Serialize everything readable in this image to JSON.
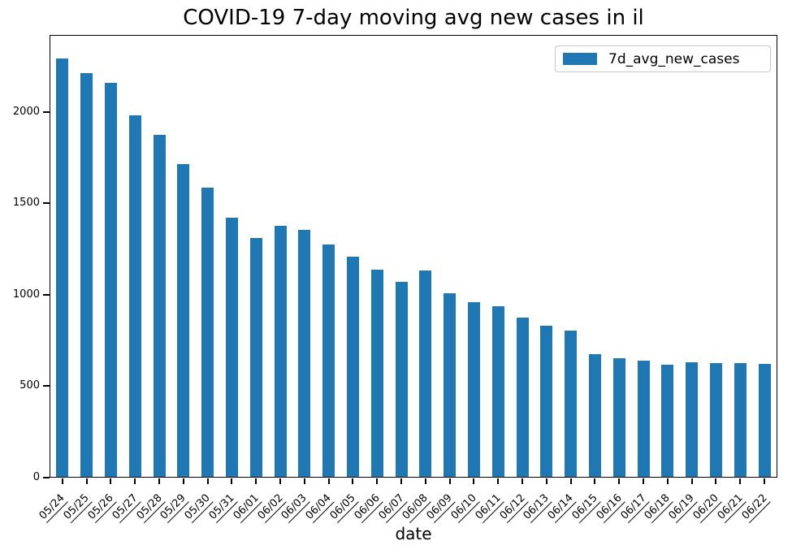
{
  "chart_data": {
    "type": "bar",
    "title": "COVID-19 7-day moving avg new cases in il",
    "xlabel": "date",
    "ylabel": "",
    "legend": {
      "label": "7d_avg_new_cases",
      "position": "upper right"
    },
    "bar_color": "#1f77b4",
    "grid": false,
    "ylim": [
      0,
      2420
    ],
    "yticks": [
      0,
      500,
      1000,
      1500,
      2000
    ],
    "categories": [
      "05/24",
      "05/25",
      "05/26",
      "05/27",
      "05/28",
      "05/29",
      "05/30",
      "05/31",
      "06/01",
      "06/02",
      "06/03",
      "06/04",
      "06/05",
      "06/06",
      "06/07",
      "06/08",
      "06/09",
      "06/10",
      "06/11",
      "06/12",
      "06/13",
      "06/14",
      "06/15",
      "06/16",
      "06/17",
      "06/18",
      "06/19",
      "06/20",
      "06/21",
      "06/22"
    ],
    "values": [
      2295,
      2214,
      2163,
      1983,
      1875,
      1714,
      1586,
      1421,
      1311,
      1378,
      1357,
      1273,
      1208,
      1138,
      1068,
      1131,
      1009,
      960,
      935,
      875,
      830,
      803,
      675,
      649,
      638,
      613,
      630,
      625,
      625,
      618
    ]
  }
}
